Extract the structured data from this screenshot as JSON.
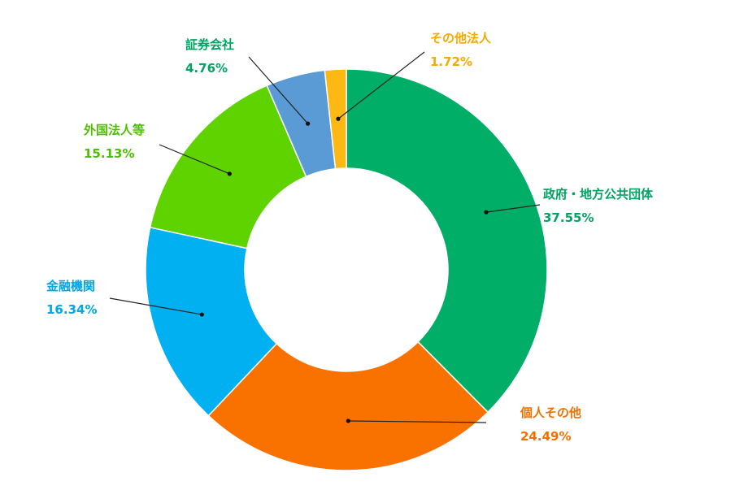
{
  "chart_data": {
    "type": "pie",
    "donut": true,
    "title": "",
    "start_angle_deg": 0,
    "direction": "clockwise",
    "series": [
      {
        "name": "政府・地方公共団体",
        "label": "政府・地方公共団体",
        "value_text": "37.55%",
        "value": 37.55,
        "color": "#00AE67"
      },
      {
        "name": "個人その他",
        "label": "個人その他",
        "value_text": "24.49%",
        "value": 24.49,
        "color": "#F97200"
      },
      {
        "name": "金融機関",
        "label": "金融機関",
        "value_text": "16.34%",
        "value": 16.34,
        "color": "#00B0F0"
      },
      {
        "name": "外国法人等",
        "label": "外国法人等",
        "value_text": "15.13%",
        "value": 15.13,
        "color": "#5ED300"
      },
      {
        "name": "証券会社",
        "label": "証券会社",
        "value_text": "4.76%",
        "value": 4.76,
        "color": "#5B9BD5"
      },
      {
        "name": "その他法人",
        "label": "その他法人",
        "value_text": "1.72%",
        "value": 1.72,
        "color": "#FDB813"
      }
    ]
  },
  "label_colors": {
    "政府・地方公共団体": "#00A361",
    "個人その他": "#F07000",
    "金融機関": "#00A6E6",
    "外国法人等": "#4DBF00",
    "証券会社": "#00A361",
    "その他法人": "#F5AA00"
  }
}
